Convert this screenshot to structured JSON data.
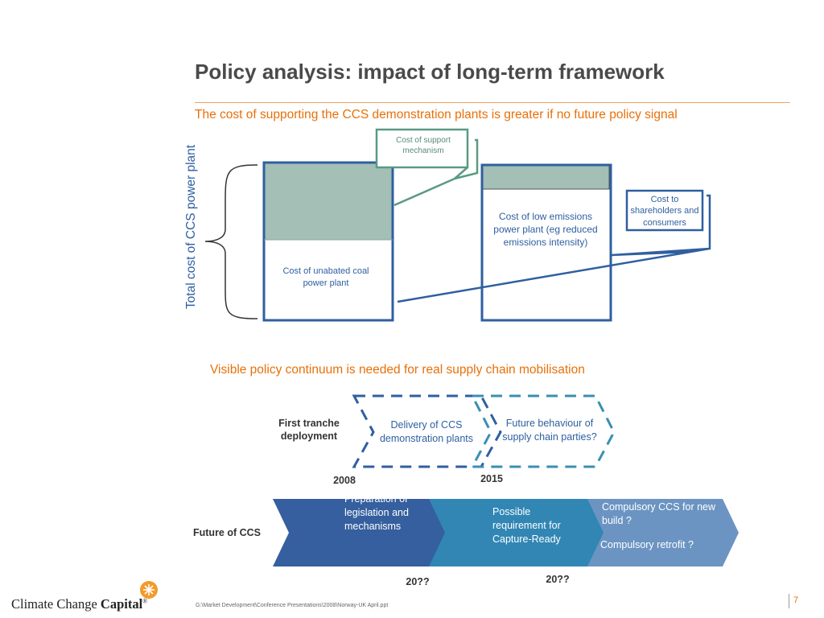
{
  "title": "Policy analysis: impact of long-term framework",
  "subtitle": "The cost of supporting the CCS demonstration plants is greater if no future policy signal",
  "cost_chart": {
    "yaxis_label": "Total cost of CCS power plant",
    "coal_label": "Cost of unabated coal power plant",
    "low_emissions_label": "Cost of low emissions power plant (eg reduced emissions intensity)",
    "support_label": "Cost  of support mechanism",
    "shareholder_label": "Cost to shareholders and consumers",
    "colors": {
      "box_border": "#2f5fa0",
      "support_fill": "#a3bfb6",
      "callout_border": "#5a9a82"
    }
  },
  "continuum": {
    "heading": "Visible policy continuum is needed for real supply chain mobilisation",
    "first_tranche_label": "First tranche deployment",
    "delivery_label": "Delivery of CCS demonstration plants",
    "future_behaviour_label": "Future behaviour of supply chain parties?",
    "year_start": "2008",
    "year_mid": "2015",
    "future_ccs_label": "Future of CCS",
    "preparation_label": "Preparation of legislation and mechanisms",
    "capture_ready_label": "Possible requirement for Capture-Ready",
    "compulsory_new_label": "Compulsory CCS for new build ?",
    "compulsory_retrofit_label": "Compulsory retrofit ?",
    "year_future_1": "20??",
    "year_future_2": "20??",
    "colors": {
      "dash_dark": "#2f5fa0",
      "dash_teal": "#3a8fb0",
      "arrow_1": "#355f9e",
      "arrow_2": "#3186b4",
      "arrow_3": "#6b94c2"
    }
  },
  "footer": {
    "logo_text_regular": "Climate Change",
    "logo_text_bold": "Capital",
    "logo_mark": "®",
    "logo_icon": "sun-icon",
    "file_path": "G:\\Market Development\\Conference Presentations\\2008\\Norway-UK April.ppt",
    "page_number": "7"
  }
}
